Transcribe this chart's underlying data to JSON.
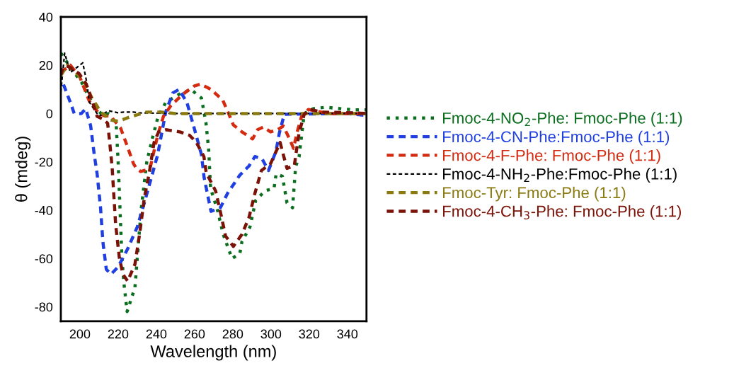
{
  "chart_data": {
    "type": "line",
    "xlabel": "Wavelength (nm)",
    "ylabel": "θ (mdeg)",
    "xlim": [
      190,
      350
    ],
    "ylim": [
      -86,
      40
    ],
    "xticks": [
      200,
      220,
      240,
      260,
      280,
      300,
      320,
      340
    ],
    "yticks": [
      -80,
      -60,
      -40,
      -20,
      0,
      20,
      40
    ],
    "grid": false,
    "legend": "right",
    "marker": "none",
    "series": [
      {
        "name": "Fmoc-4-NO$_{2}$-Phe: Fmoc-Phe (1:1)",
        "color": "#0a6e1e",
        "line_style": "dotted",
        "x": [
          190,
          196,
          200.8,
          206,
          212,
          215,
          219,
          220,
          221,
          222,
          223,
          224.7,
          228.8,
          230,
          232,
          235,
          238,
          241,
          245,
          252,
          258,
          263.6,
          266,
          267.4,
          268.4,
          272,
          275,
          279.6,
          283.7,
          284.8,
          289,
          292,
          296.8,
          301.6,
          302.7,
          306,
          308.4,
          311.3,
          312.9,
          314.7,
          317.4,
          322,
          328.6,
          343.5,
          350
        ],
        "values": [
          25,
          18,
          13,
          5,
          -1,
          0,
          -5,
          -20,
          -40,
          -60,
          -70,
          -82,
          -72,
          -60,
          -40,
          -20,
          -10,
          -1,
          4.7,
          8,
          10,
          6.4,
          -4,
          -15,
          -31,
          -40,
          -50,
          -60,
          -58,
          -53,
          -47,
          -36,
          -32,
          -31,
          -25,
          -26,
          -37,
          -39,
          -22,
          -18,
          0,
          2,
          2.6,
          1.5,
          1.5
        ]
      },
      {
        "name": "Fmoc-4-CN-Phe:Fmoc-Phe (1:1)",
        "color": "#1f3fe0",
        "line_style": "dashed",
        "x": [
          191.4,
          195,
          197,
          200.7,
          203,
          205.6,
          207.5,
          209,
          210.8,
          212,
          213.8,
          216.3,
          220,
          225,
          230,
          233.7,
          237.4,
          240.7,
          244.9,
          248.6,
          251.9,
          256,
          259.8,
          263.6,
          265,
          268.6,
          273.5,
          277.3,
          283.6,
          288.5,
          291.6,
          295.3,
          298.7,
          302.6,
          304.4,
          307,
          340,
          350
        ],
        "values": [
          12,
          4.6,
          0,
          0,
          2,
          -5,
          -17,
          -25,
          -39,
          -53,
          -64.5,
          -66.5,
          -63.5,
          -56,
          -47,
          -37,
          -26.5,
          -17,
          0.6,
          8.5,
          10,
          4.6,
          -6,
          -17,
          -26.5,
          -40.5,
          -39,
          -33,
          -25.6,
          -21.7,
          -17.8,
          -18.7,
          -23.6,
          -15.7,
          -8,
          -0.3,
          0,
          -0.8
        ]
      },
      {
        "name": "Fmoc-4-F-Phe: Fmoc-Phe (1:1)",
        "color": "#d42a10",
        "line_style": "dashed",
        "x": [
          190,
          195,
          200,
          205,
          210,
          213,
          216,
          221.3,
          225,
          228,
          229.5,
          231.8,
          236,
          237,
          240.7,
          243.7,
          247.5,
          253.7,
          259.8,
          263,
          268.6,
          274.8,
          278,
          280.3,
          284.8,
          290.4,
          293,
          296,
          299.8,
          303.5,
          306.5,
          310,
          311.8,
          313.6,
          316,
          319.6,
          330,
          350
        ],
        "values": [
          17,
          20,
          15,
          5,
          0,
          -1,
          -1,
          -6,
          -14,
          -20.7,
          -22.7,
          -24,
          -23,
          -21.6,
          -9,
          -1.2,
          3.2,
          7.9,
          11.4,
          12.2,
          10,
          5.5,
          -0.3,
          -4.7,
          -7.6,
          -10.5,
          -6.7,
          -5.6,
          -7.6,
          -6.7,
          -5.2,
          -11,
          -14.4,
          -8,
          -1.2,
          1.7,
          0,
          0
        ]
      },
      {
        "name": "Fmoc-4-NH$_{2}$-Phe:Fmoc-Phe (1:1)",
        "color": "#000000",
        "line_style": "dashed",
        "x": [
          190,
          192,
          195,
          201.5,
          203.3,
          205,
          210,
          215,
          220,
          223,
          228,
          230.6,
          250,
          300,
          350
        ],
        "values": [
          9,
          25,
          17,
          21,
          14,
          4.6,
          -1.2,
          1.2,
          0.3,
          0.6,
          0.6,
          0.3,
          0,
          0,
          0
        ]
      },
      {
        "name": "Fmoc-Tyr: Fmoc-Phe (1:1)",
        "color": "#8a7a10",
        "line_style": "dashed",
        "x": [
          190,
          193.3,
          197.6,
          201.8,
          206.3,
          211,
          216.3,
          220,
          226.9,
          235,
          242.5,
          250,
          300,
          350
        ],
        "values": [
          15.7,
          20,
          17,
          14,
          6.4,
          0.6,
          -2.7,
          -3.2,
          -1.2,
          0.6,
          0.6,
          0,
          0,
          0
        ]
      },
      {
        "name": "Fmoc-4-CH$_{3}$-Phe: Fmoc-Phe (1:1)",
        "color": "#7a1208",
        "line_style": "dashed",
        "x": [
          190,
          191.4,
          194,
          199.5,
          203.3,
          206.3,
          209,
          212,
          214.5,
          215.6,
          216.9,
          217.6,
          218.7,
          220.6,
          222.5,
          225,
          228.8,
          231.4,
          233.7,
          236.3,
          238.8,
          241.2,
          245,
          252.3,
          257.4,
          261,
          264.9,
          266.1,
          271,
          273.6,
          276.2,
          280.3,
          284.8,
          288.5,
          291.6,
          295,
          299.8,
          304.8,
          306,
          308.4,
          312.2,
          314.7,
          317.4,
          320.4,
          327,
          343.5,
          350
        ],
        "values": [
          16,
          19.5,
          19.5,
          16.6,
          12.2,
          5.5,
          -1.2,
          -2.3,
          -4,
          -12,
          -22.7,
          -32,
          -46,
          -59.5,
          -66.5,
          -69.4,
          -62.4,
          -49,
          -35,
          -24.5,
          -12,
          -7.6,
          -6.7,
          -7.6,
          -9,
          -12,
          -17.8,
          -24.5,
          -32,
          -41,
          -50.7,
          -55,
          -50,
          -43,
          -33,
          -23.6,
          -20.7,
          -12,
          -15.7,
          -22.7,
          -21.6,
          -8,
          -0.3,
          1.7,
          0.6,
          0.3,
          0
        ]
      }
    ]
  }
}
